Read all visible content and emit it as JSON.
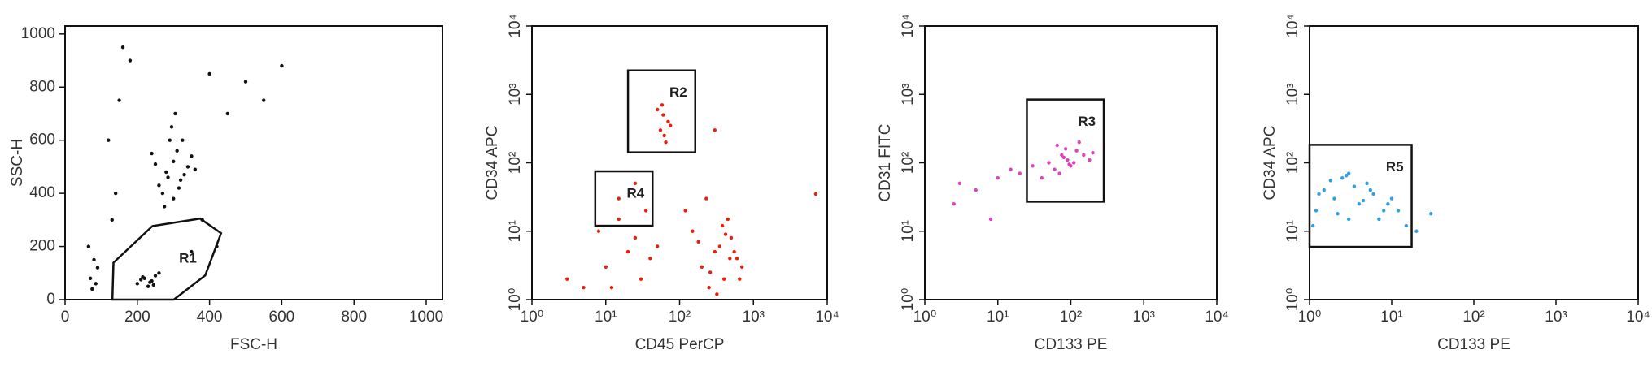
{
  "chart_data": [
    {
      "type": "scatter",
      "xlabel": "FSC-H",
      "ylabel": "SSC-H",
      "color": "#111111",
      "xlim": [
        0,
        1045
      ],
      "ylim": [
        0,
        1030
      ],
      "xticks": [
        0,
        200,
        400,
        600,
        800,
        1000
      ],
      "yticks": [
        0,
        200,
        400,
        600,
        800,
        1000
      ],
      "points": {
        "x": [
          280,
          300,
          320,
          260,
          310,
          290,
          340,
          270,
          330,
          300,
          250,
          350,
          295,
          315,
          285,
          305,
          360,
          240,
          275,
          325,
          200,
          220,
          240,
          250,
          230,
          210,
          260,
          235,
          215,
          245,
          70,
          80,
          65,
          75,
          90,
          85,
          150,
          180,
          120,
          400,
          450,
          500,
          550,
          140,
          160,
          380,
          420,
          600,
          350,
          130
        ],
        "y": [
          480,
          520,
          450,
          430,
          560,
          600,
          500,
          400,
          470,
          380,
          510,
          540,
          650,
          420,
          460,
          700,
          490,
          550,
          350,
          600,
          60,
          80,
          70,
          90,
          50,
          75,
          100,
          65,
          85,
          55,
          80,
          150,
          200,
          40,
          120,
          60,
          750,
          900,
          600,
          850,
          700,
          820,
          750,
          400,
          950,
          300,
          200,
          880,
          180,
          300
        ]
      },
      "gates": [
        {
          "label": "R1",
          "x": [
            131,
            134,
            242,
            374,
            432,
            388,
            301
          ],
          "y": [
            0,
            139,
            277,
            305,
            250,
            91,
            0
          ]
        }
      ]
    },
    {
      "type": "scatter",
      "xlabel": "CD45 PerCP",
      "ylabel": "CD34 APC",
      "color": "#e8200c",
      "log": true,
      "xlim": [
        1,
        10000
      ],
      "ylim": [
        1,
        10000
      ],
      "xticks": [
        {
          "value": 1,
          "label": "10⁰"
        },
        {
          "value": 10,
          "label": "10¹"
        },
        {
          "value": 100,
          "label": "10²"
        },
        {
          "value": 1000,
          "label": "10³"
        },
        {
          "value": 10000,
          "label": "10⁴"
        }
      ],
      "yticks": [
        {
          "value": 1,
          "label": "10⁰"
        },
        {
          "value": 10,
          "label": "10¹"
        },
        {
          "value": 100,
          "label": "10²"
        },
        {
          "value": 1000,
          "label": "10³"
        },
        {
          "value": 10000,
          "label": "10⁴"
        }
      ],
      "points": {
        "x": [
          200,
          300,
          400,
          500,
          600,
          150,
          250,
          350,
          450,
          700,
          120,
          180,
          260,
          380,
          550,
          650,
          320,
          420,
          480,
          230,
          10,
          20,
          30,
          15,
          25,
          40,
          8,
          12,
          35,
          50,
          55,
          60,
          65,
          70,
          58,
          62,
          75,
          50,
          15,
          25,
          5,
          3,
          7000,
          300
        ],
        "y": [
          3,
          5,
          2,
          8,
          4,
          10,
          1.5,
          6,
          15,
          3,
          20,
          7,
          2.5,
          12,
          5,
          2,
          1.2,
          9,
          4,
          30,
          3,
          5,
          2,
          15,
          8,
          4,
          10,
          1.5,
          20,
          6,
          300,
          500,
          200,
          400,
          700,
          250,
          350,
          600,
          30,
          50,
          1.5,
          2,
          35,
          300
        ]
      },
      "gates": [
        {
          "label": "R2",
          "x": [
            20,
            163
          ],
          "y": [
            142,
            2240
          ]
        },
        {
          "label": "R4",
          "x": [
            7.2,
            43
          ],
          "y": [
            12,
            75
          ]
        }
      ]
    },
    {
      "type": "scatter",
      "xlabel": "CD133 PE",
      "ylabel": "CD31 FITC",
      "color": "#e040c0",
      "log": true,
      "xlim": [
        1,
        10000
      ],
      "ylim": [
        1,
        10000
      ],
      "xticks": [
        {
          "value": 1,
          "label": "10⁰"
        },
        {
          "value": 10,
          "label": "10¹"
        },
        {
          "value": 100,
          "label": "10²"
        },
        {
          "value": 1000,
          "label": "10³"
        },
        {
          "value": 10000,
          "label": "10⁴"
        }
      ],
      "yticks": [
        {
          "value": 1,
          "label": "10⁰"
        },
        {
          "value": 10,
          "label": "10¹"
        },
        {
          "value": 100,
          "label": "10²"
        },
        {
          "value": 1000,
          "label": "10³"
        },
        {
          "value": 10000,
          "label": "10⁴"
        }
      ],
      "points": {
        "x": [
          50,
          80,
          100,
          120,
          60,
          90,
          150,
          70,
          110,
          40,
          130,
          200,
          85,
          95,
          30,
          20,
          15,
          10,
          5,
          3,
          2.5,
          8,
          180,
          65,
          75
        ],
        "y": [
          100,
          120,
          90,
          150,
          80,
          110,
          130,
          70,
          100,
          60,
          200,
          140,
          160,
          95,
          90,
          70,
          80,
          60,
          40,
          50,
          25,
          15,
          110,
          180,
          130
        ]
      },
      "gates": [
        {
          "label": "R3",
          "x": [
            25,
            283
          ],
          "y": [
            27,
            840
          ]
        }
      ]
    },
    {
      "type": "scatter",
      "xlabel": "CD133 PE",
      "ylabel": "CD34 APC",
      "color": "#30a0e0",
      "log": true,
      "xlim": [
        1,
        10000
      ],
      "ylim": [
        1,
        10000
      ],
      "xticks": [
        {
          "value": 1,
          "label": "10⁰"
        },
        {
          "value": 10,
          "label": "10¹"
        },
        {
          "value": 100,
          "label": "10²"
        },
        {
          "value": 1000,
          "label": "10³"
        },
        {
          "value": 10000,
          "label": "10⁴"
        }
      ],
      "yticks": [
        {
          "value": 1,
          "label": "10⁰"
        },
        {
          "value": 10,
          "label": "10¹"
        },
        {
          "value": 100,
          "label": "10²"
        },
        {
          "value": 1000,
          "label": "10³"
        },
        {
          "value": 10000,
          "label": "10⁴"
        }
      ],
      "points": {
        "x": [
          1.2,
          1.5,
          2,
          2.5,
          3,
          4,
          5,
          6,
          8,
          1.1,
          1.8,
          2.2,
          3.5,
          4.5,
          7,
          10,
          12,
          15,
          20,
          30,
          1.3,
          2.8,
          5.5,
          9,
          3
        ],
        "y": [
          20,
          40,
          30,
          60,
          15,
          25,
          50,
          35,
          20,
          12,
          55,
          18,
          45,
          28,
          15,
          30,
          20,
          12,
          10,
          18,
          35,
          65,
          40,
          25,
          70
        ]
      },
      "gates": [
        {
          "label": "R5",
          "x": [
            1,
            17.5
          ],
          "y": [
            5.9,
            183
          ]
        }
      ]
    }
  ]
}
